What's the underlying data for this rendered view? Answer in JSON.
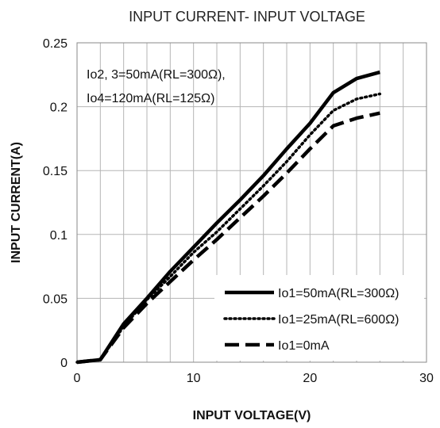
{
  "chart_data": {
    "type": "line",
    "title": "INPUT CURRENT- INPUT VOLTAGE",
    "xlabel": "INPUT VOLTAGE(V)",
    "ylabel": "INPUT CURRENT(A)",
    "xlim": [
      0,
      30
    ],
    "ylim": [
      0,
      0.25
    ],
    "xticks": [
      0,
      10,
      20,
      30
    ],
    "yticks": [
      0,
      0.05,
      0.1,
      0.15,
      0.2,
      0.25
    ],
    "xtick_labels": [
      "0",
      "10",
      "20",
      "30"
    ],
    "ytick_labels": [
      "0",
      "0.05",
      "0.1",
      "0.15",
      "0.2",
      "0.25"
    ],
    "grid": {
      "x_minor_step": 2,
      "y_step": 0.05
    },
    "legend_position": "bottom-right",
    "annotation_lines": [
      "Io2, 3=50mA(RL=300Ω),",
      "Io4=120mA(RL=125Ω)"
    ],
    "series": [
      {
        "name": "Io1=50mA(RL=300Ω)",
        "style": "solid",
        "x": [
          0,
          2,
          4,
          6,
          8,
          10,
          12,
          14,
          16,
          18,
          20,
          22,
          24,
          26
        ],
        "y": [
          0,
          0.002,
          0.03,
          0.05,
          0.071,
          0.09,
          0.109,
          0.127,
          0.146,
          0.167,
          0.187,
          0.211,
          0.222,
          0.227
        ]
      },
      {
        "name": "Io1=25mA(RL=600Ω)",
        "style": "dotted",
        "x": [
          0,
          2,
          4,
          6,
          8,
          10,
          12,
          14,
          16,
          18,
          20,
          22,
          24,
          26
        ],
        "y": [
          0,
          0.002,
          0.028,
          0.049,
          0.067,
          0.086,
          0.102,
          0.12,
          0.138,
          0.157,
          0.178,
          0.197,
          0.206,
          0.21
        ]
      },
      {
        "name": "Io1=0mA",
        "style": "dashed",
        "x": [
          0,
          2,
          4,
          6,
          8,
          10,
          12,
          14,
          16,
          18,
          20,
          22,
          24,
          26
        ],
        "y": [
          0,
          0.002,
          0.027,
          0.046,
          0.063,
          0.08,
          0.096,
          0.113,
          0.13,
          0.148,
          0.167,
          0.185,
          0.191,
          0.195
        ]
      }
    ]
  },
  "colors": {
    "line": "#000000",
    "grid": "#b5b5b5",
    "frame": "#8a8a8a"
  }
}
